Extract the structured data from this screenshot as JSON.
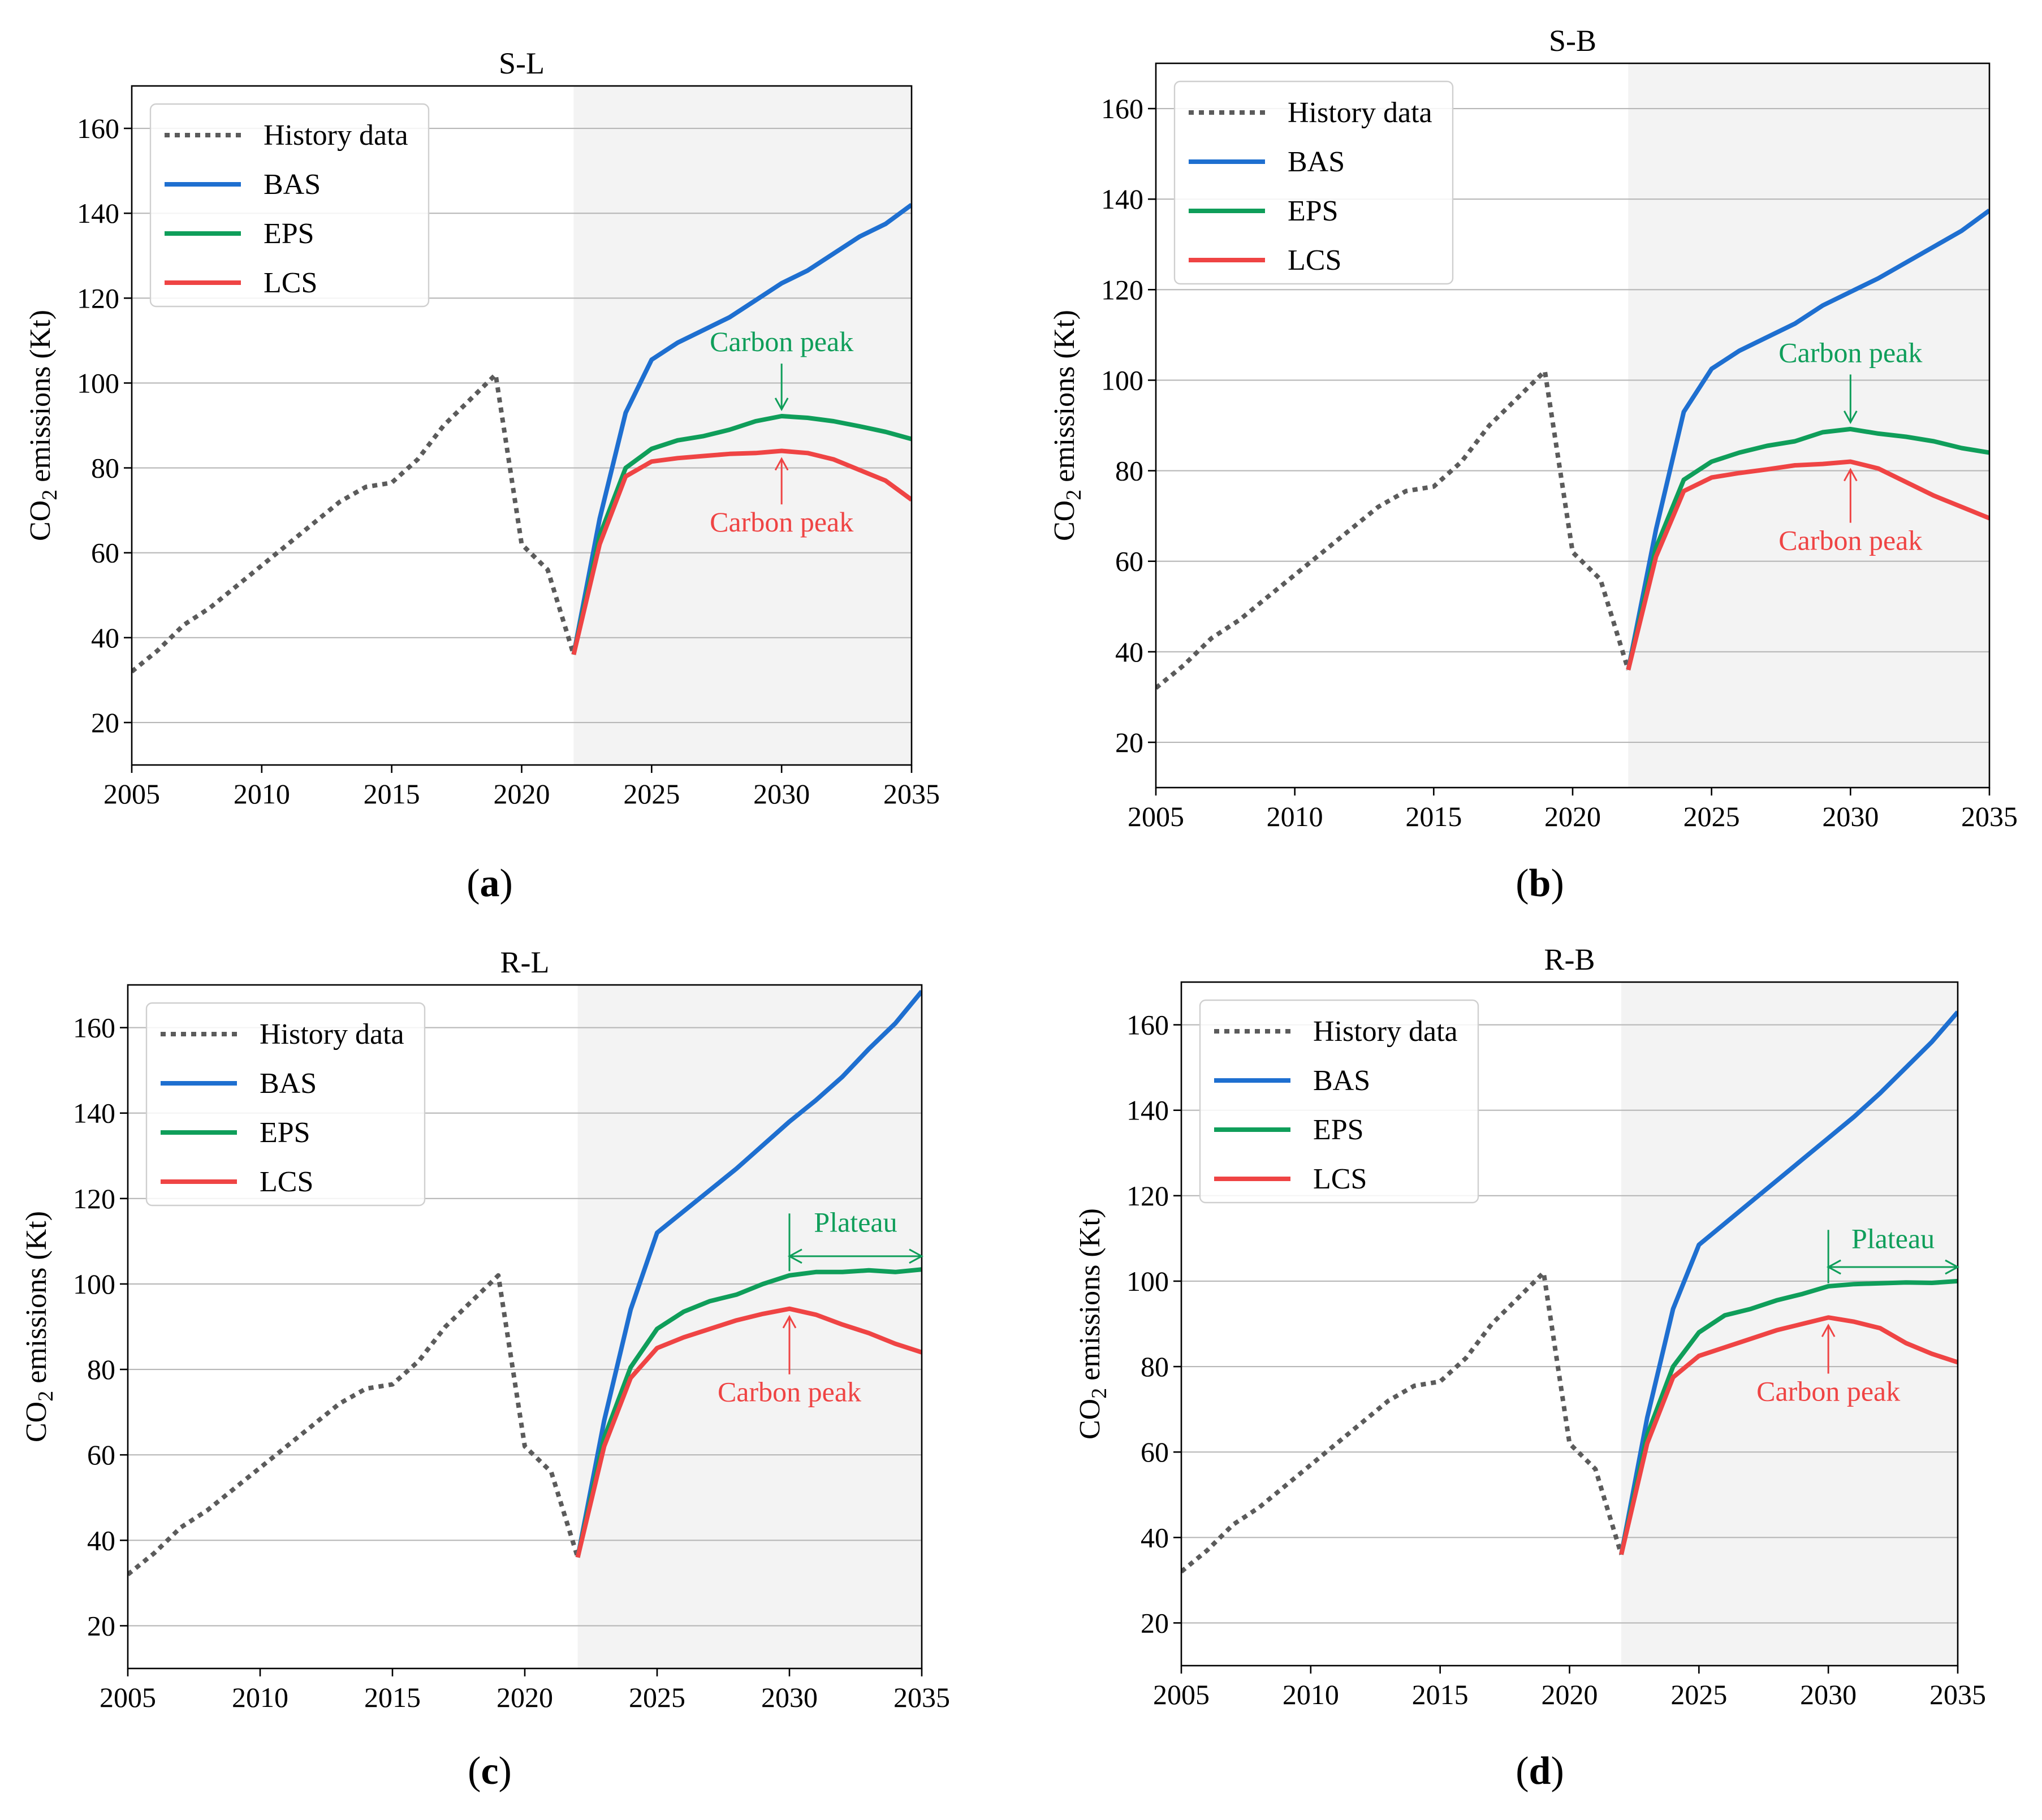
{
  "colors": {
    "history": "#5b5b5b",
    "BAS": "#1e6fd0",
    "EPS": "#0f9e5a",
    "LCS": "#ef4444",
    "forecast_bg": "#f3f3f3",
    "grid": "#b7b7b7",
    "axis": "#000000"
  },
  "shared": {
    "ylabel_main": "CO",
    "ylabel_sub": "2",
    "ylabel_rest": " emissions (Kt)",
    "xlim": [
      2005,
      2035
    ],
    "ylim": [
      10,
      170
    ],
    "xticks": [
      2005,
      2010,
      2015,
      2020,
      2025,
      2030,
      2035
    ],
    "yticks": [
      20,
      40,
      60,
      80,
      100,
      120,
      140,
      160
    ],
    "legend": [
      "History data",
      "BAS",
      "EPS",
      "LCS"
    ],
    "forecast_start": 2022
  },
  "chart_data": [
    {
      "type": "line",
      "panel": "a",
      "caption_letter": "a",
      "title": "S-L",
      "legend_placement": "top-left",
      "series": [
        {
          "name": "History data",
          "style": "dotted",
          "x": [
            2005,
            2006,
            2007,
            2008,
            2009,
            2010,
            2011,
            2012,
            2013,
            2014,
            2015,
            2016,
            2017,
            2018,
            2019,
            2020,
            2021,
            2022
          ],
          "values": [
            32,
            37,
            43,
            47,
            52,
            57,
            62,
            67,
            72,
            75.5,
            76.5,
            82,
            90,
            96,
            102,
            62,
            56,
            36
          ]
        },
        {
          "name": "BAS",
          "x": [
            2022,
            2023,
            2024,
            2025,
            2026,
            2027,
            2028,
            2029,
            2030,
            2031,
            2032,
            2033,
            2034,
            2035
          ],
          "values": [
            36,
            68,
            93,
            105.5,
            109.5,
            112.5,
            115.5,
            119.5,
            123.5,
            126.5,
            130.5,
            134.5,
            137.5,
            142
          ]
        },
        {
          "name": "EPS",
          "x": [
            2022,
            2023,
            2024,
            2025,
            2026,
            2027,
            2028,
            2029,
            2030,
            2031,
            2032,
            2033,
            2034,
            2035
          ],
          "values": [
            36,
            64,
            80,
            84.5,
            86.5,
            87.5,
            89,
            91,
            92.2,
            91.8,
            91,
            89.8,
            88.5,
            86.8
          ]
        },
        {
          "name": "LCS",
          "x": [
            2022,
            2023,
            2024,
            2025,
            2026,
            2027,
            2028,
            2029,
            2030,
            2031,
            2032,
            2033,
            2034,
            2035
          ],
          "values": [
            36,
            62,
            78,
            81.5,
            82.3,
            82.8,
            83.3,
            83.5,
            84,
            83.5,
            82,
            79.5,
            77,
            72.5
          ]
        }
      ],
      "annotations": [
        {
          "text": "Carbon peak",
          "color": "EPS",
          "x": 2030,
          "y": 92.2,
          "dir": "down",
          "label_y": 107.5
        },
        {
          "text": "Carbon peak",
          "color": "LCS",
          "x": 2030,
          "y": 84,
          "dir": "up",
          "label_y": 65
        }
      ]
    },
    {
      "type": "line",
      "panel": "b",
      "caption_letter": "b",
      "title": "S-B",
      "legend_placement": "top-left",
      "series": [
        {
          "name": "History data",
          "style": "dotted",
          "x": [
            2005,
            2006,
            2007,
            2008,
            2009,
            2010,
            2011,
            2012,
            2013,
            2014,
            2015,
            2016,
            2017,
            2018,
            2019,
            2020,
            2021,
            2022
          ],
          "values": [
            32,
            37,
            43,
            47,
            52,
            57,
            62,
            67,
            72,
            75.5,
            76.5,
            82,
            90,
            96,
            102,
            62,
            56,
            36
          ]
        },
        {
          "name": "BAS",
          "x": [
            2022,
            2023,
            2024,
            2025,
            2026,
            2027,
            2028,
            2029,
            2030,
            2031,
            2032,
            2033,
            2034,
            2035
          ],
          "values": [
            36,
            67,
            93,
            102.5,
            106.5,
            109.5,
            112.5,
            116.5,
            119.5,
            122.5,
            126,
            129.5,
            133,
            137.5
          ]
        },
        {
          "name": "EPS",
          "x": [
            2022,
            2023,
            2024,
            2025,
            2026,
            2027,
            2028,
            2029,
            2030,
            2031,
            2032,
            2033,
            2034,
            2035
          ],
          "values": [
            36,
            63,
            78,
            82,
            84,
            85.5,
            86.5,
            88.5,
            89.2,
            88.2,
            87.5,
            86.5,
            85,
            84
          ]
        },
        {
          "name": "LCS",
          "x": [
            2022,
            2023,
            2024,
            2025,
            2026,
            2027,
            2028,
            2029,
            2030,
            2031,
            2032,
            2033,
            2034,
            2035
          ],
          "values": [
            36,
            61,
            75.5,
            78.5,
            79.5,
            80.3,
            81.2,
            81.5,
            82,
            80.5,
            77.5,
            74.5,
            72,
            69.5
          ]
        }
      ],
      "annotations": [
        {
          "text": "Carbon peak",
          "color": "EPS",
          "x": 2030,
          "y": 89.2,
          "dir": "down",
          "label_y": 104
        },
        {
          "text": "Carbon peak",
          "color": "LCS",
          "x": 2030,
          "y": 82,
          "dir": "up",
          "label_y": 62.5
        }
      ]
    },
    {
      "type": "line",
      "panel": "c",
      "caption_letter": "c",
      "title": "R-L",
      "legend_placement": "top-left",
      "series": [
        {
          "name": "History data",
          "style": "dotted",
          "x": [
            2005,
            2006,
            2007,
            2008,
            2009,
            2010,
            2011,
            2012,
            2013,
            2014,
            2015,
            2016,
            2017,
            2018,
            2019,
            2020,
            2021,
            2022
          ],
          "values": [
            32,
            37,
            43,
            47,
            52,
            57,
            62,
            67,
            72,
            75.5,
            76.5,
            82,
            90,
            96,
            102,
            62,
            56,
            36
          ]
        },
        {
          "name": "BAS",
          "x": [
            2022,
            2023,
            2024,
            2025,
            2026,
            2027,
            2028,
            2029,
            2030,
            2031,
            2032,
            2033,
            2034,
            2035
          ],
          "values": [
            36,
            68,
            94,
            112,
            117,
            122,
            127,
            132.5,
            138,
            143,
            148.5,
            155,
            161,
            168.5
          ]
        },
        {
          "name": "EPS",
          "x": [
            2022,
            2023,
            2024,
            2025,
            2026,
            2027,
            2028,
            2029,
            2030,
            2031,
            2032,
            2033,
            2034,
            2035
          ],
          "values": [
            36,
            64,
            80.5,
            89.5,
            93.5,
            96,
            97.5,
            100,
            102,
            102.8,
            102.8,
            103.2,
            102.8,
            103.4
          ]
        },
        {
          "name": "LCS",
          "x": [
            2022,
            2023,
            2024,
            2025,
            2026,
            2027,
            2028,
            2029,
            2030,
            2031,
            2032,
            2033,
            2034,
            2035
          ],
          "values": [
            36,
            62,
            78,
            85,
            87.5,
            89.5,
            91.5,
            93,
            94.2,
            92.8,
            90.5,
            88.5,
            86,
            84
          ]
        }
      ],
      "annotations": [
        {
          "text": "Carbon peak",
          "color": "LCS",
          "x": 2030,
          "y": 94.2,
          "dir": "up",
          "label_y": 72.5
        },
        {
          "text": "Plateau",
          "color": "EPS",
          "type": "plateau",
          "x_start": 2030,
          "x_end": 2035,
          "y": 106.5,
          "tick_top": 116.5,
          "tick_bottom": 103
        }
      ]
    },
    {
      "type": "line",
      "panel": "d",
      "caption_letter": "d",
      "title": "R-B",
      "legend_placement": "top-left",
      "series": [
        {
          "name": "History data",
          "style": "dotted",
          "x": [
            2005,
            2006,
            2007,
            2008,
            2009,
            2010,
            2011,
            2012,
            2013,
            2014,
            2015,
            2016,
            2017,
            2018,
            2019,
            2020,
            2021,
            2022
          ],
          "values": [
            32,
            37,
            43,
            47,
            52,
            57,
            62,
            67,
            72,
            75.5,
            76.5,
            82,
            90,
            96,
            102,
            62,
            56,
            36
          ]
        },
        {
          "name": "BAS",
          "x": [
            2022,
            2023,
            2024,
            2025,
            2026,
            2027,
            2028,
            2029,
            2030,
            2031,
            2032,
            2033,
            2034,
            2035
          ],
          "values": [
            36,
            68,
            93.5,
            108.5,
            113.5,
            118.5,
            123.5,
            128.5,
            133.5,
            138.5,
            144,
            150,
            156,
            163
          ]
        },
        {
          "name": "EPS",
          "x": [
            2022,
            2023,
            2024,
            2025,
            2026,
            2027,
            2028,
            2029,
            2030,
            2031,
            2032,
            2033,
            2034,
            2035
          ],
          "values": [
            36,
            64,
            80,
            88,
            92,
            93.5,
            95.5,
            97,
            98.8,
            99.3,
            99.5,
            99.7,
            99.6,
            100
          ]
        },
        {
          "name": "LCS",
          "x": [
            2022,
            2023,
            2024,
            2025,
            2026,
            2027,
            2028,
            2029,
            2030,
            2031,
            2032,
            2033,
            2034,
            2035
          ],
          "values": [
            36,
            62,
            77.5,
            82.5,
            84.5,
            86.5,
            88.5,
            90,
            91.5,
            90.5,
            89,
            85.5,
            83,
            81
          ]
        }
      ],
      "annotations": [
        {
          "text": "Carbon peak",
          "color": "LCS",
          "x": 2030,
          "y": 91.5,
          "dir": "up",
          "label_y": 72
        },
        {
          "text": "Plateau",
          "color": "EPS",
          "type": "plateau",
          "x_start": 2030,
          "x_end": 2035,
          "y": 103.3,
          "tick_top": 112,
          "tick_bottom": 99.5
        }
      ]
    }
  ]
}
